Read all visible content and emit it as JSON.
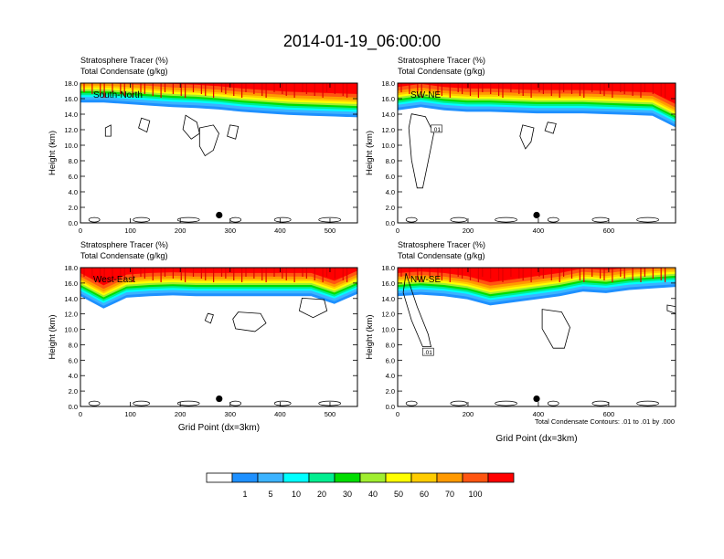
{
  "title": "2014-01-19_06:00:00",
  "footnote": "Total Condensate Contours: .01 to .01 by .000",
  "colorbar": {
    "colors": [
      "#ffffff",
      "#1e90ff",
      "#3cb3ff",
      "#00ffff",
      "#00ee90",
      "#00dd00",
      "#a0ee30",
      "#ffff00",
      "#ffcc00",
      "#ff9900",
      "#ff5511",
      "#ff0000"
    ],
    "labels": [
      "1",
      "5",
      "10",
      "20",
      "30",
      "40",
      "50",
      "60",
      "70",
      "100"
    ]
  },
  "chart_data": [
    {
      "type": "contour",
      "label": "South-North",
      "line1": "Stratosphere Tracer   (%)",
      "line2": "Total Condensate   (g/kg)",
      "ylabel": "Height (km)",
      "xlabel": "",
      "xlim": [
        0,
        555
      ],
      "ylim": [
        0,
        18
      ],
      "xticks": [
        0,
        100,
        200,
        300,
        400,
        500
      ],
      "yticks": [
        "0.0",
        "2.0",
        "4.0",
        "6.0",
        "8.0",
        "10.0",
        "12.0",
        "14.0",
        "16.0",
        "18.0"
      ],
      "dot": [
        278,
        1.0
      ],
      "tropopause_km": [
        16.2,
        16.2,
        16.0,
        15.8,
        15.6,
        15.5,
        15.3,
        15.0,
        14.8,
        14.6,
        14.5,
        14.4,
        14.3
      ]
    },
    {
      "type": "contour",
      "label": "SW-NE",
      "line1": "Stratosphere Tracer   (%)",
      "line2": "Total Condensate   (g/kg)",
      "ylabel": "Height (km)",
      "xlabel": "",
      "xlim": [
        0,
        790
      ],
      "ylim": [
        0,
        18
      ],
      "xticks": [
        0,
        200,
        400,
        600
      ],
      "yticks": [
        "0.0",
        "2.0",
        "4.0",
        "6.0",
        "8.0",
        "10.0",
        "12.0",
        "14.0",
        "16.0",
        "18.0"
      ],
      "dot": [
        395,
        1.0
      ],
      "contour_label": ".01",
      "tropopause_km": [
        15.2,
        15.6,
        15.2,
        15.0,
        15.0,
        14.9,
        14.8,
        14.8,
        14.8,
        14.7,
        14.6,
        14.5,
        13.0
      ]
    },
    {
      "type": "contour",
      "label": "West-East",
      "line1": "Stratosphere Tracer   (%)",
      "line2": "Total Condensate   (g/kg)",
      "ylabel": "Height (km)",
      "xlabel": "Grid Point (dx=3km)",
      "xlim": [
        0,
        555
      ],
      "ylim": [
        0,
        18
      ],
      "xticks": [
        0,
        100,
        200,
        300,
        400,
        500
      ],
      "yticks": [
        "0.0",
        "2.0",
        "4.0",
        "6.0",
        "8.0",
        "10.0",
        "12.0",
        "14.0",
        "16.0",
        "18.0"
      ],
      "dot": [
        278,
        1.0
      ],
      "tropopause_km": [
        15.0,
        13.4,
        14.8,
        15.0,
        15.1,
        15.0,
        15.0,
        15.0,
        15.0,
        15.0,
        15.0,
        14.0,
        15.3
      ]
    },
    {
      "type": "contour",
      "label": "NW-SE",
      "line1": "Stratosphere Tracer   (%)",
      "line2": "Total Condensate   (g/kg)",
      "ylabel": "Height (km)",
      "xlabel": "Grid Point (dx=3km)",
      "xlim": [
        0,
        790
      ],
      "ylim": [
        0,
        18
      ],
      "xticks": [
        0,
        200,
        400,
        600
      ],
      "yticks": [
        "0.0",
        "2.0",
        "4.0",
        "6.0",
        "8.0",
        "10.0",
        "12.0",
        "14.0",
        "16.0",
        "18.0"
      ],
      "dot": [
        395,
        1.0
      ],
      "contour_label": ".01",
      "tropopause_km": [
        15.0,
        15.2,
        15.0,
        14.6,
        13.8,
        14.2,
        14.6,
        15.0,
        15.6,
        15.4,
        15.8,
        16.0,
        16.2
      ]
    }
  ]
}
